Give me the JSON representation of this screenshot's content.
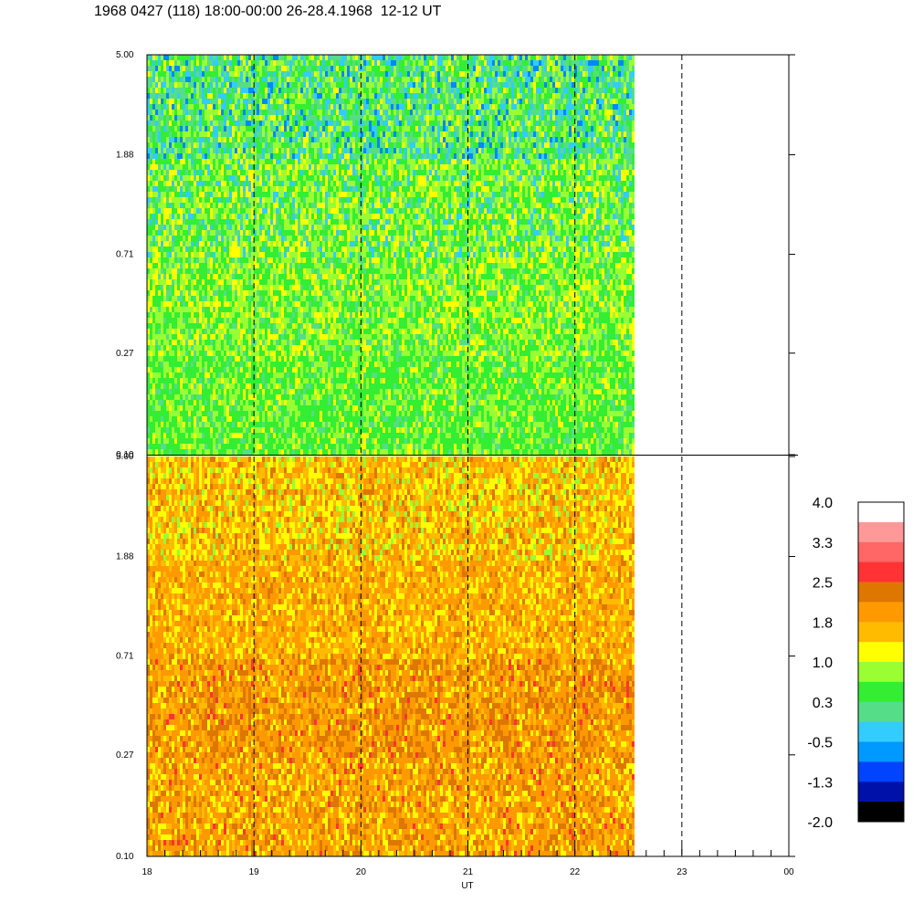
{
  "title": "1968 0427 (118) 18:00-00:00 26-28.4.1968  12-12 UT",
  "chart_data": [
    {
      "type": "heatmap",
      "panel": "upper",
      "y_scale": "log",
      "ylim": [
        0.1,
        5.0
      ],
      "y_ticks": [
        "5.00",
        "1.88",
        "0.71",
        "0.27",
        "0.10"
      ],
      "y_tick_values": [
        5.0,
        1.88,
        0.71,
        0.27,
        0.1
      ],
      "xlim": [
        18,
        24
      ],
      "data_end_hour": 22.57,
      "dominant_level": 0.3,
      "description_colors": [
        "#33ee33",
        "#99ff33",
        "#ffff00",
        "#55dd88",
        "#33ccff",
        "#0088ff"
      ]
    },
    {
      "type": "heatmap",
      "panel": "lower",
      "y_scale": "log",
      "ylim": [
        0.1,
        5.0
      ],
      "y_ticks": [
        "5.00",
        "1.88",
        "0.71",
        "0.27",
        "0.10"
      ],
      "y_tick_values": [
        5.0,
        1.88,
        0.71,
        0.27,
        0.1
      ],
      "xlim": [
        18,
        24
      ],
      "data_end_hour": 22.57,
      "dominant_level": 1.8,
      "description_colors": [
        "#ff9900",
        "#ffbb00",
        "#ffff00",
        "#dd7700",
        "#ff3333",
        "#99ff33"
      ]
    }
  ],
  "x_axis": {
    "label": "UT",
    "ticks": [
      "18",
      "19",
      "20",
      "21",
      "22",
      "23",
      "00"
    ],
    "tick_values": [
      18,
      19,
      20,
      21,
      22,
      23,
      24
    ],
    "dashed_gridlines_at": [
      19,
      20,
      21,
      22,
      23
    ]
  },
  "colorbar": {
    "labels": [
      "4.0",
      "3.3",
      "2.5",
      "1.8",
      "1.0",
      "0.3",
      "-0.5",
      "-1.3",
      "-2.0"
    ],
    "colors_top_to_bottom": [
      "#ffffff",
      "#ff9999",
      "#ff6666",
      "#ff3333",
      "#dd7700",
      "#ff9900",
      "#ffbb00",
      "#ffff00",
      "#99ff33",
      "#33ee33",
      "#55dd88",
      "#33ccff",
      "#0099ff",
      "#0044ff",
      "#0011aa",
      "#000000"
    ]
  }
}
